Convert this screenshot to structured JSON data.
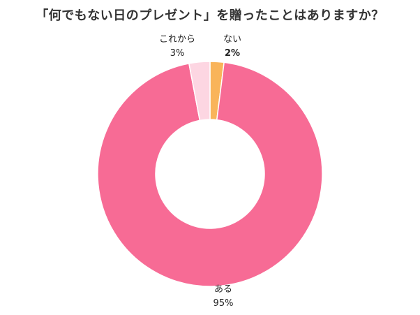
{
  "chart_data": {
    "type": "pie",
    "title": "「何でもない日のプレゼント」を贈ったことはありますか？",
    "slices": [
      {
        "label": "ない",
        "value": 2,
        "value_label": "2%",
        "color": "#F9B45A"
      },
      {
        "label": "ある",
        "value": 95,
        "value_label": "95%",
        "color": "#F76B95"
      },
      {
        "label": "これから",
        "value": 3,
        "value_label": "3%",
        "color": "#FDD6E2"
      }
    ],
    "donut": true,
    "start_angle": "top, clockwise"
  }
}
